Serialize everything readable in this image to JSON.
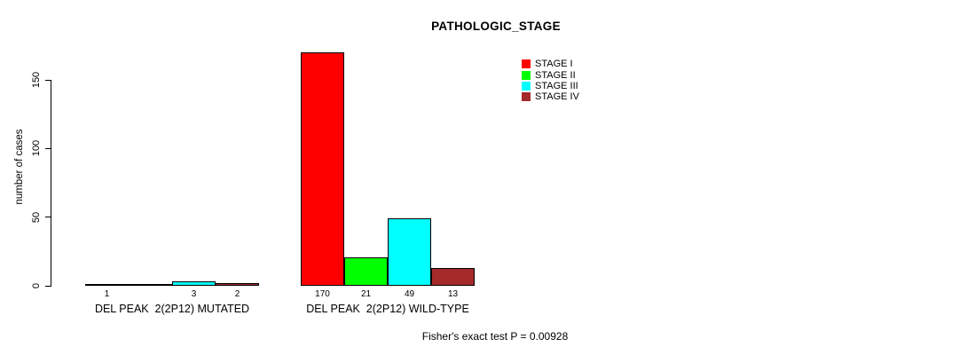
{
  "title": "PATHOLOGIC_STAGE",
  "footer": "Fisher's exact test P = 0.00928",
  "chart_data": {
    "type": "bar",
    "title": "PATHOLOGIC_STAGE",
    "xlabel": "",
    "ylabel": "number of cases",
    "ylim": [
      0,
      170
    ],
    "yticks": [
      0,
      50,
      100,
      150
    ],
    "grid": false,
    "legend_position": "top-right",
    "legend": [
      {
        "label": "STAGE I",
        "color": "#ff0000"
      },
      {
        "label": "STAGE II",
        "color": "#00ff00"
      },
      {
        "label": "STAGE III",
        "color": "#00ffff"
      },
      {
        "label": "STAGE IV",
        "color": "#a52a2a"
      }
    ],
    "groups": [
      {
        "label": "DEL PEAK  2(2P12) MUTATED",
        "values": [
          1,
          0,
          3,
          2
        ],
        "value_labels": [
          "1",
          "",
          "3",
          "2"
        ]
      },
      {
        "label": "DEL PEAK  2(2P12) WILD-TYPE",
        "values": [
          170,
          21,
          49,
          13
        ],
        "value_labels": [
          "170",
          "21",
          "49",
          "13"
        ]
      }
    ],
    "annotation": "Fisher's exact test P = 0.00928"
  }
}
